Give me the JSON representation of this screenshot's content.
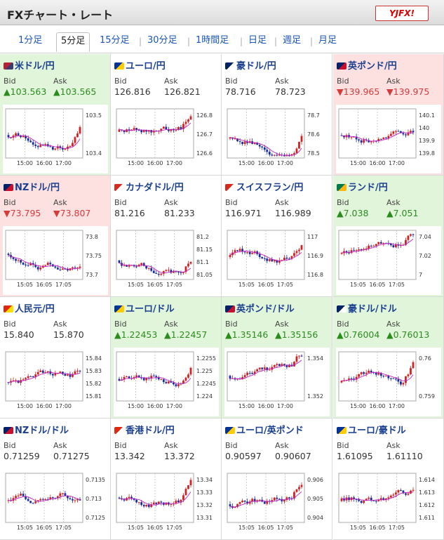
{
  "header": {
    "title": "FXチャート・レート",
    "logo": "YJFX!"
  },
  "tabs": [
    "1分足",
    "5分足",
    "15分足",
    "30分足",
    "1時間足",
    "日足",
    "週足",
    "月足"
  ],
  "active_tab": 1,
  "labels": {
    "bid": "Bid",
    "ask": "Ask"
  },
  "pairs": [
    {
      "name": "米ドル/円",
      "trend": "up",
      "flag": [
        "#b22234",
        "#3c3b6e"
      ],
      "bid": "▲103.563",
      "ask": "▲103.565",
      "ticks": [
        "103.5",
        "103.4"
      ],
      "xlabels": [
        "15:00",
        "16:00",
        "17:00"
      ]
    },
    {
      "name": "ユーロ/円",
      "trend": "flat",
      "flag": [
        "#003399",
        "#ffcc00"
      ],
      "bid": "126.816",
      "ask": "126.821",
      "ticks": [
        "126.8",
        "126.7",
        "126.6"
      ],
      "xlabels": [
        "15:00",
        "16:00",
        "17:00"
      ]
    },
    {
      "name": "豪ドル/円",
      "trend": "flat",
      "flag": [
        "#012169",
        "#ffffff"
      ],
      "bid": "78.716",
      "ask": "78.723",
      "ticks": [
        "78.7",
        "78.6",
        "78.5"
      ],
      "xlabels": [
        "15:00",
        "16:00",
        "17:00"
      ]
    },
    {
      "name": "英ポンド/円",
      "trend": "down",
      "flag": [
        "#012169",
        "#c8102e"
      ],
      "bid": "▼139.965",
      "ask": "▼139.975",
      "ticks": [
        "140.1",
        "140",
        "139.9",
        "139.8"
      ],
      "xlabels": [
        "15:00",
        "16:00",
        "17:00"
      ]
    },
    {
      "name": "NZドル/円",
      "trend": "down",
      "flag": [
        "#012169",
        "#c8102e"
      ],
      "bid": "▼73.795",
      "ask": "▼73.807",
      "ticks": [
        "73.8",
        "73.75",
        "73.7"
      ],
      "xlabels": [
        "15:05",
        "16:05",
        "17:05"
      ]
    },
    {
      "name": "カナダドル/円",
      "trend": "flat",
      "flag": [
        "#d52b1e",
        "#ffffff"
      ],
      "bid": "81.216",
      "ask": "81.233",
      "ticks": [
        "81.2",
        "81.15",
        "81.1",
        "81.05"
      ],
      "xlabels": [
        "15:05",
        "16:05",
        "17:05"
      ]
    },
    {
      "name": "スイスフラン/円",
      "trend": "flat",
      "flag": [
        "#d52b1e",
        "#ffffff"
      ],
      "bid": "116.971",
      "ask": "116.989",
      "ticks": [
        "117",
        "116.9",
        "116.8"
      ],
      "xlabels": [
        "15:05",
        "16:05",
        "17:05"
      ]
    },
    {
      "name": "ランド/円",
      "trend": "up",
      "flag": [
        "#007a4d",
        "#ffb612"
      ],
      "bid": "▲7.038",
      "ask": "▲7.051",
      "ticks": [
        "7.04",
        "7.02",
        "7"
      ],
      "xlabels": [
        "15:05",
        "16:05",
        "17:05"
      ]
    },
    {
      "name": "人民元/円",
      "trend": "flat",
      "flag": [
        "#de2910",
        "#ffde00"
      ],
      "bid": "15.840",
      "ask": "15.870",
      "ticks": [
        "15.84",
        "15.83",
        "15.82",
        "15.81"
      ],
      "xlabels": [
        "15:00",
        "16:00",
        "17:00"
      ]
    },
    {
      "name": "ユーロ/ドル",
      "trend": "up",
      "flag": [
        "#003399",
        "#ffcc00"
      ],
      "bid": "▲1.22453",
      "ask": "▲1.22457",
      "ticks": [
        "1.2255",
        "1.225",
        "1.2245",
        "1.224"
      ],
      "xlabels": [
        "15:00",
        "16:00",
        "17:00"
      ]
    },
    {
      "name": "英ポンド/ドル",
      "trend": "up",
      "flag": [
        "#012169",
        "#c8102e"
      ],
      "bid": "▲1.35146",
      "ask": "▲1.35156",
      "ticks": [
        "1.354",
        "1.352"
      ],
      "xlabels": [
        "15:00",
        "16:00",
        "17:00"
      ]
    },
    {
      "name": "豪ドル/ドル",
      "trend": "up",
      "flag": [
        "#012169",
        "#ffffff"
      ],
      "bid": "▲0.76004",
      "ask": "▲0.76013",
      "ticks": [
        "0.76",
        "0.759"
      ],
      "xlabels": [
        "15:00",
        "16:00",
        "17:00"
      ]
    },
    {
      "name": "NZドル/ドル",
      "trend": "flat",
      "flag": [
        "#012169",
        "#c8102e"
      ],
      "bid": "0.71259",
      "ask": "0.71275",
      "ticks": [
        "0.7135",
        "0.713",
        "0.7125"
      ],
      "xlabels": [
        "15:05",
        "16:05",
        "17:05"
      ]
    },
    {
      "name": "香港ドル/円",
      "trend": "flat",
      "flag": [
        "#de2910",
        "#ffffff"
      ],
      "bid": "13.342",
      "ask": "13.372",
      "ticks": [
        "13.34",
        "13.33",
        "13.32",
        "13.31"
      ],
      "xlabels": [
        "15:05",
        "16:05",
        "17:05"
      ]
    },
    {
      "name": "ユーロ/英ポンド",
      "trend": "flat",
      "flag": [
        "#003399",
        "#ffcc00"
      ],
      "bid": "0.90597",
      "ask": "0.90607",
      "ticks": [
        "0.906",
        "0.905",
        "0.904"
      ],
      "xlabels": [
        "15:05",
        "16:05",
        "17:05"
      ]
    },
    {
      "name": "ユーロ/豪ドル",
      "trend": "flat",
      "flag": [
        "#003399",
        "#ffcc00"
      ],
      "bid": "1.61095",
      "ask": "1.61110",
      "ticks": [
        "1.614",
        "1.613",
        "1.612",
        "1.611"
      ],
      "xlabels": [
        "15:05",
        "16:05",
        "17:05"
      ]
    }
  ],
  "colors": {
    "up_bg": "#e1f5da",
    "down_bg": "#fde0e0",
    "up_text": "#2b8c1e",
    "down_text": "#d43b3b",
    "candle_up": "#d42020",
    "candle_down": "#1a2f9f",
    "ma_line": "#c020c0"
  }
}
